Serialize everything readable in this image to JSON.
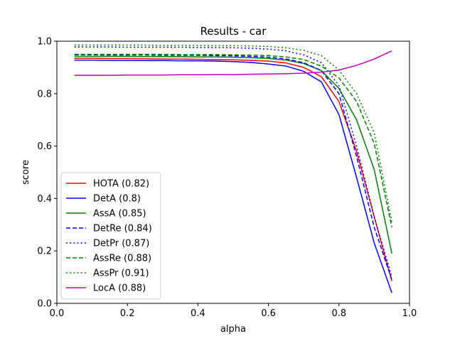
{
  "chart_data": {
    "type": "line",
    "title": "Results - car",
    "xlabel": "alpha",
    "ylabel": "score",
    "xlim": [
      0.0,
      1.0
    ],
    "ylim": [
      0.0,
      1.0
    ],
    "xticks": [
      0.0,
      0.2,
      0.4,
      0.6,
      0.8,
      1.0
    ],
    "yticks": [
      0.0,
      0.2,
      0.4,
      0.6,
      0.8,
      1.0
    ],
    "xtick_labels": [
      "0.0",
      "0.2",
      "0.4",
      "0.6",
      "0.8",
      "1.0"
    ],
    "ytick_labels": [
      "0.0",
      "0.2",
      "0.4",
      "0.6",
      "0.8",
      "1.0"
    ],
    "grid": false,
    "legend_position": "lower-left",
    "x": [
      0.05,
      0.1,
      0.15,
      0.2,
      0.25,
      0.3,
      0.35,
      0.4,
      0.45,
      0.5,
      0.55,
      0.6,
      0.65,
      0.7,
      0.75,
      0.8,
      0.85,
      0.9,
      0.95
    ],
    "series": [
      {
        "name": "HOTA (0.82)",
        "color": "#ff0000",
        "dash": "solid",
        "values": [
          0.935,
          0.935,
          0.934,
          0.934,
          0.933,
          0.932,
          0.932,
          0.931,
          0.93,
          0.929,
          0.927,
          0.924,
          0.917,
          0.9,
          0.865,
          0.77,
          0.58,
          0.33,
          0.085
        ]
      },
      {
        "name": "DetA (0.8)",
        "color": "#0000ff",
        "dash": "solid",
        "values": [
          0.928,
          0.928,
          0.927,
          0.927,
          0.926,
          0.926,
          0.925,
          0.925,
          0.924,
          0.922,
          0.919,
          0.913,
          0.905,
          0.885,
          0.845,
          0.72,
          0.48,
          0.23,
          0.04
        ]
      },
      {
        "name": "AssA (0.85)",
        "color": "#008000",
        "dash": "solid",
        "values": [
          0.942,
          0.942,
          0.942,
          0.942,
          0.941,
          0.941,
          0.941,
          0.94,
          0.94,
          0.939,
          0.937,
          0.934,
          0.928,
          0.915,
          0.888,
          0.82,
          0.7,
          0.51,
          0.19
        ]
      },
      {
        "name": "DetRe (0.84)",
        "color": "#0000ff",
        "dash": "dashed",
        "values": [
          0.948,
          0.948,
          0.947,
          0.947,
          0.947,
          0.946,
          0.946,
          0.946,
          0.945,
          0.944,
          0.942,
          0.939,
          0.932,
          0.918,
          0.888,
          0.8,
          0.56,
          0.29,
          0.09
        ]
      },
      {
        "name": "DetPr (0.87)",
        "color": "#0000ff",
        "dash": "dotted",
        "values": [
          0.978,
          0.978,
          0.978,
          0.977,
          0.977,
          0.977,
          0.977,
          0.976,
          0.976,
          0.975,
          0.973,
          0.97,
          0.963,
          0.948,
          0.918,
          0.83,
          0.6,
          0.33,
          0.1
        ]
      },
      {
        "name": "AssRe (0.88)",
        "color": "#008000",
        "dash": "dashed",
        "values": [
          0.95,
          0.95,
          0.95,
          0.95,
          0.95,
          0.95,
          0.949,
          0.949,
          0.949,
          0.948,
          0.947,
          0.945,
          0.94,
          0.93,
          0.905,
          0.86,
          0.77,
          0.61,
          0.29
        ]
      },
      {
        "name": "AssPr (0.91)",
        "color": "#008000",
        "dash": "dotted",
        "values": [
          0.985,
          0.985,
          0.985,
          0.985,
          0.985,
          0.984,
          0.984,
          0.984,
          0.983,
          0.983,
          0.982,
          0.98,
          0.975,
          0.965,
          0.945,
          0.89,
          0.8,
          0.65,
          0.31
        ]
      },
      {
        "name": "LocA (0.88)",
        "color": "#bf00bf",
        "dash": "solid",
        "values": [
          0.87,
          0.87,
          0.87,
          0.871,
          0.871,
          0.871,
          0.872,
          0.872,
          0.873,
          0.873,
          0.874,
          0.875,
          0.876,
          0.878,
          0.882,
          0.89,
          0.908,
          0.932,
          0.963
        ]
      }
    ]
  }
}
